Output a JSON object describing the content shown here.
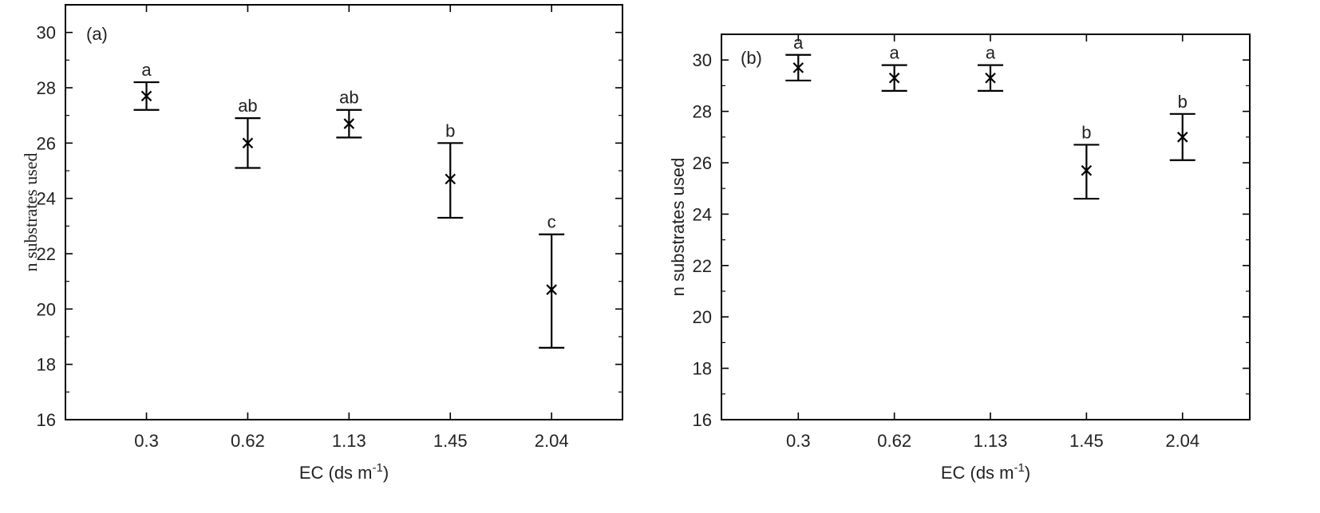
{
  "chart_data": [
    {
      "type": "scatter",
      "panel_label": "(a)",
      "xlabel": "EC (ds m",
      "xlabel_sup": "-1",
      "xlabel_end": ")",
      "ylabel": "n substrates used",
      "ylim": [
        16,
        31
      ],
      "yticks": [
        "16",
        "18",
        "20",
        "22",
        "24",
        "26",
        "28",
        "30"
      ],
      "categories": [
        "0.3",
        "0.62",
        "1.13",
        "1.45",
        "2.04"
      ],
      "values": [
        27.7,
        26.0,
        26.7,
        24.7,
        20.7
      ],
      "error_low": [
        27.2,
        25.1,
        26.2,
        23.3,
        18.6
      ],
      "error_high": [
        28.2,
        26.9,
        27.2,
        26.0,
        22.7
      ],
      "significance": [
        "a",
        "ab",
        "ab",
        "b",
        "c"
      ]
    },
    {
      "type": "scatter",
      "panel_label": "(b)",
      "xlabel": "EC (ds m",
      "xlabel_sup": "-1",
      "xlabel_end": ")",
      "ylabel": "n substrates used",
      "ylim": [
        16,
        31
      ],
      "yticks": [
        "16",
        "18",
        "20",
        "22",
        "24",
        "26",
        "28",
        "30"
      ],
      "categories": [
        "0.3",
        "0.62",
        "1.13",
        "1.45",
        "2.04"
      ],
      "values": [
        29.7,
        29.3,
        29.3,
        25.7,
        27.0
      ],
      "error_low": [
        29.2,
        28.8,
        28.8,
        24.6,
        26.1
      ],
      "error_high": [
        30.2,
        29.8,
        29.8,
        26.7,
        27.9
      ],
      "significance": [
        "a",
        "a",
        "a",
        "b",
        "b"
      ]
    }
  ]
}
